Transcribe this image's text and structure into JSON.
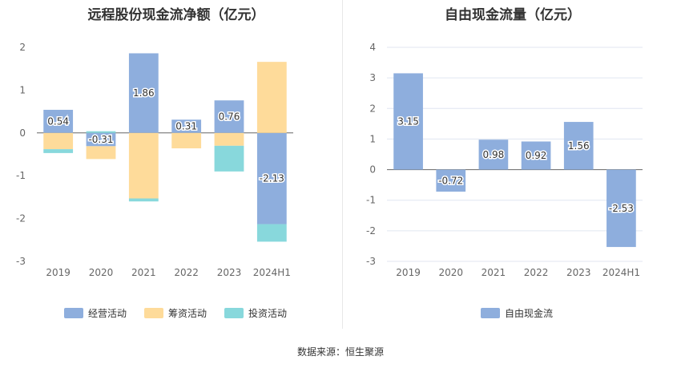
{
  "source": "数据来源：恒生聚源",
  "colors": {
    "operating": "#8eaedd",
    "financing": "#fedb9a",
    "investing": "#88d8dc",
    "fcf": "#8eaedd"
  },
  "chart_data": [
    {
      "type": "bar",
      "stacked": true,
      "title": "远程股份现金流净额（亿元）",
      "categories": [
        "2019",
        "2020",
        "2021",
        "2022",
        "2023",
        "2024H1"
      ],
      "ylim": [
        -3,
        2
      ],
      "yticks": [
        "2",
        "1",
        "0",
        "-1",
        "-2",
        "-3"
      ],
      "grid": false,
      "legend_position": "bottom",
      "series": [
        {
          "name": "经营活动",
          "values": [
            0.54,
            -0.31,
            1.86,
            0.31,
            0.76,
            -2.13
          ],
          "labels": [
            "0.54",
            "-0.31",
            "1.86",
            "0.31",
            "0.76",
            "-2.13"
          ]
        },
        {
          "name": "筹资活动",
          "values": [
            -0.38,
            -0.3,
            -1.53,
            -0.36,
            -0.3,
            1.66
          ]
        },
        {
          "name": "投资活动",
          "values": [
            -0.09,
            0.04,
            -0.07,
            0.0,
            -0.6,
            -0.41
          ]
        }
      ]
    },
    {
      "type": "bar",
      "title": "自由现金流量（亿元）",
      "categories": [
        "2019",
        "2020",
        "2021",
        "2022",
        "2023",
        "2024H1"
      ],
      "ylim": [
        -3,
        4
      ],
      "yticks": [
        "4",
        "3",
        "2",
        "1",
        "0",
        "-1",
        "-2",
        "-3"
      ],
      "grid": true,
      "legend_position": "bottom",
      "series": [
        {
          "name": "自由现金流",
          "values": [
            3.15,
            -0.72,
            0.98,
            0.92,
            1.56,
            -2.53
          ],
          "labels": [
            "3.15",
            "-0.72",
            "0.98",
            "0.92",
            "1.56",
            "-2.53"
          ]
        }
      ]
    }
  ]
}
